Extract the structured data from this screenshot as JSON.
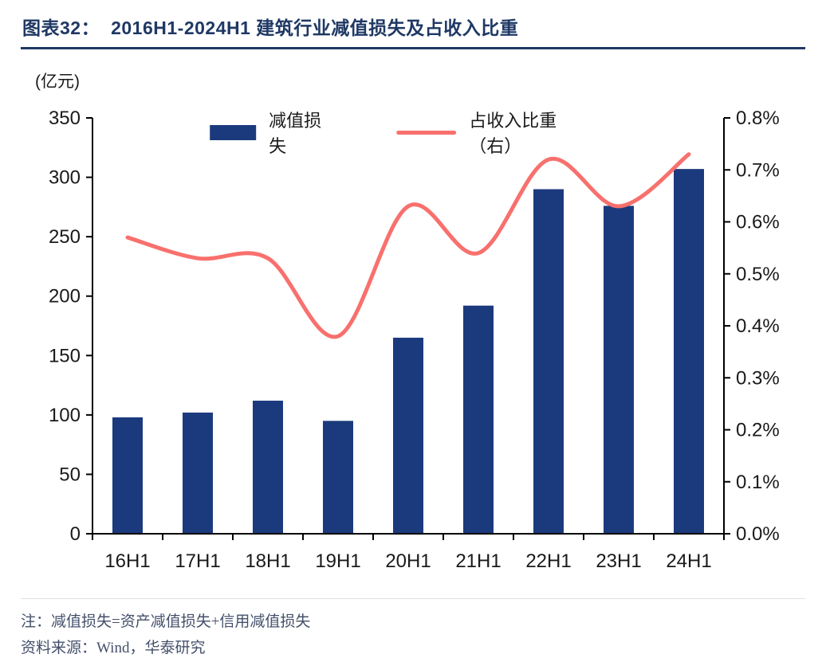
{
  "title": {
    "prefix": "图表32：",
    "text": "2016H1-2024H1 建筑行业减值损失及占收入比重"
  },
  "unit_label": "(亿元)",
  "legend": [
    {
      "label": "减值损失",
      "type": "bar"
    },
    {
      "label": "占收入比重（右）",
      "type": "line"
    }
  ],
  "notes": [
    "注：减值损失=资产减值损失+信用减值损失",
    "资料来源：Wind，华泰研究"
  ],
  "colors": {
    "bar": "#1B3A7D",
    "line": "#F8706D",
    "title": "#1F3864",
    "axis": "#000000",
    "text": "#1a1a1a",
    "note": "#44506B"
  },
  "chart_data": {
    "type": "bar",
    "subtype": "bar+line dual-axis",
    "title": "2016H1-2024H1 建筑行业减值损失及占收入比重",
    "categories": [
      "16H1",
      "17H1",
      "18H1",
      "19H1",
      "20H1",
      "21H1",
      "22H1",
      "23H1",
      "24H1"
    ],
    "series": [
      {
        "name": "减值损失",
        "type": "bar",
        "axis": "left",
        "unit": "亿元",
        "values": [
          98,
          102,
          112,
          95,
          165,
          192,
          290,
          276,
          307
        ]
      },
      {
        "name": "占收入比重（右）",
        "type": "line",
        "axis": "right",
        "unit": "%",
        "values": [
          0.57,
          0.53,
          0.53,
          0.38,
          0.63,
          0.54,
          0.72,
          0.63,
          0.73
        ]
      }
    ],
    "left_axis": {
      "label": "(亿元)",
      "min": 0,
      "max": 350,
      "ticks": [
        0,
        50,
        100,
        150,
        200,
        250,
        300,
        350
      ]
    },
    "right_axis": {
      "label": "%",
      "min": 0,
      "max": 0.8,
      "ticks": [
        0,
        0.1,
        0.2,
        0.3,
        0.4,
        0.5,
        0.6,
        0.7,
        0.8
      ]
    },
    "grid": false,
    "legend_position": "top-center"
  }
}
